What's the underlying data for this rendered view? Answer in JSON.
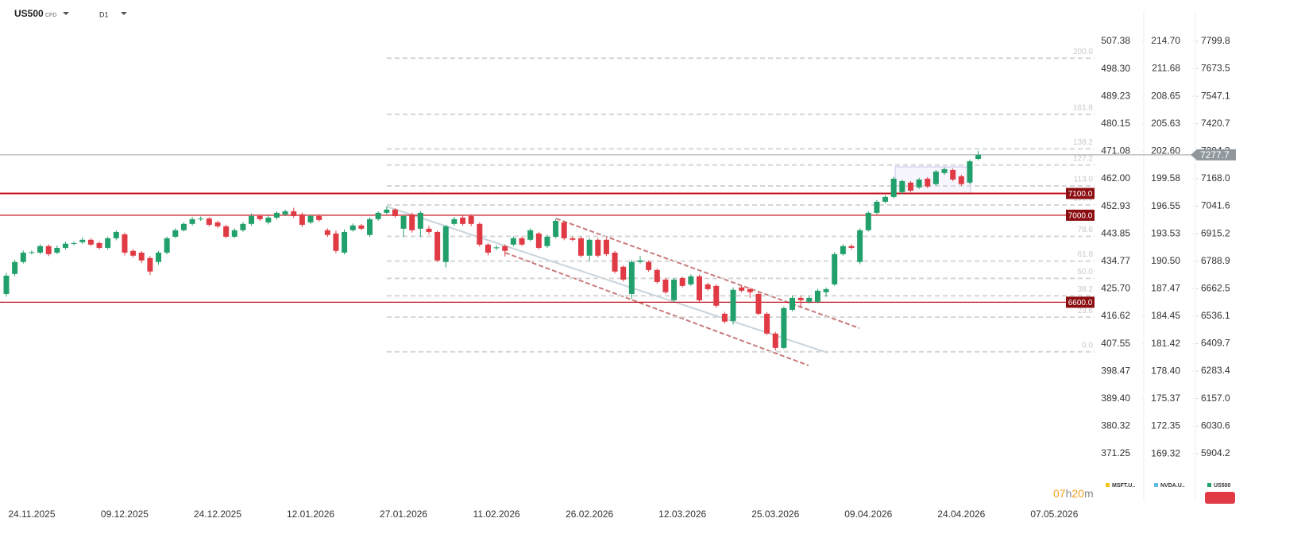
{
  "header": {
    "symbol": "US500",
    "instrument": "CFD",
    "timeframe": "D1"
  },
  "countdown": [
    "07",
    "h",
    "20",
    "m"
  ],
  "chart_data": {
    "type": "candlestick",
    "categories": [
      null,
      null,
      null,
      "24.11.2025",
      null,
      null,
      null,
      null,
      null,
      null,
      null,
      null,
      null,
      null,
      "09.12.2025",
      null,
      null,
      null,
      null,
      null,
      null,
      null,
      null,
      null,
      null,
      "24.12.2025",
      null,
      null,
      null,
      null,
      null,
      null,
      null,
      null,
      null,
      null,
      "12.01.2026",
      null,
      null,
      null,
      null,
      null,
      null,
      null,
      null,
      null,
      null,
      "27.01.2026",
      null,
      null,
      null,
      null,
      null,
      null,
      null,
      null,
      null,
      null,
      "11.02.2026",
      null,
      null,
      null,
      null,
      null,
      null,
      null,
      null,
      null,
      null,
      "26.02.2026",
      null,
      null,
      null,
      null,
      null,
      null,
      null,
      null,
      null,
      null,
      "12.03.2026",
      null,
      null,
      null,
      null,
      null,
      null,
      null,
      null,
      null,
      null,
      "25.03.2026",
      null,
      null,
      null,
      null,
      null,
      null,
      null,
      null,
      null,
      null,
      "09.04.2026",
      null,
      null,
      null,
      null,
      null,
      null,
      null,
      null,
      null,
      null,
      "24.04.2026",
      null,
      null,
      null,
      null,
      null,
      null,
      null,
      null,
      null,
      null,
      "07.05.2026",
      null,
      null,
      null,
      null
    ],
    "open": [
      6638,
      6730,
      6785,
      6828,
      6828,
      6858,
      6828,
      6850,
      6869,
      6876,
      6887,
      6872,
      6850,
      6894,
      6912,
      6836,
      6828,
      6803,
      6785,
      6828,
      6901,
      6931,
      6960,
      6982,
      6985,
      6967,
      6949,
      6901,
      6931,
      6960,
      6996,
      6967,
      6989,
      7004,
      7018,
      7004,
      6967,
      6996,
      6931,
      6916,
      6828,
      6931,
      6953,
      6909,
      6982,
      7011,
      7026,
      6938,
      7004,
      6938,
      6938,
      6923,
      6785,
      6960,
      6989,
      6996,
      6960,
      6865,
      6850,
      6858,
      6865,
      6894,
      6887,
      6916,
      6858,
      6901,
      6967,
      6894,
      6894,
      6814,
      6887,
      6887,
      6828,
      6763,
      6638,
      6785,
      6785,
      6748,
      6704,
      6609,
      6711,
      6682,
      6719,
      6682,
      6675,
      6547,
      6514,
      6668,
      6660,
      6638,
      6547,
      6456,
      6390,
      6565,
      6620,
      6602,
      6602,
      6646,
      6682,
      6821,
      6858,
      6785,
      6931,
      7011,
      7062,
      7084,
      7106,
      7150,
      7128,
      7168,
      7143,
      7194,
      7208,
      7179,
      7150,
      7259,
      null,
      null,
      null,
      null,
      null,
      null,
      null,
      null,
      null,
      null,
      null,
      null,
      null
    ],
    "high": [
      6735,
      6795,
      6838,
      6838,
      6866,
      6866,
      6860,
      6878,
      6880,
      6898,
      6895,
      6880,
      6902,
      6930,
      6920,
      6845,
      6836,
      6812,
      6836,
      6902,
      6940,
      6968,
      6992,
      6994,
      6992,
      6975,
      6956,
      6940,
      6968,
      7008,
      7004,
      6998,
      7018,
      7026,
      7034,
      7012,
      7004,
      7004,
      6940,
      6930,
      6935,
      6962,
      6960,
      6990,
      7018,
      7040,
      7032,
      7004,
      7012,
      7020,
      6950,
      6930,
      6956,
      6992,
      6998,
      7004,
      6968,
      6872,
      6862,
      6866,
      6902,
      6902,
      6940,
      6924,
      6910,
      6982,
      6974,
      6902,
      6902,
      6895,
      6895,
      6895,
      6836,
      6770,
      6795,
      6812,
      6792,
      6756,
      6712,
      6712,
      6718,
      6728,
      6726,
      6690,
      6682,
      6556,
      6668,
      6675,
      6668,
      6646,
      6555,
      6464,
      6580,
      6630,
      6628,
      6628,
      6662,
      6668,
      6830,
      6866,
      6866,
      6940,
      7018,
      7070,
      7092,
      7176,
      7164,
      7157,
      7172,
      7175,
      7208,
      7220,
      7215,
      7186,
      7256,
      7296,
      null,
      null,
      null,
      null,
      null,
      null,
      null,
      null,
      null,
      null,
      null,
      null,
      null
    ],
    "low": [
      6625,
      6720,
      6778,
      6820,
      6820,
      6812,
      6820,
      6842,
      6862,
      6868,
      6858,
      6842,
      6842,
      6885,
      6815,
      6805,
      6780,
      6725,
      6772,
      6820,
      6894,
      6925,
      6952,
      6974,
      6948,
      6940,
      6895,
      6894,
      6924,
      6952,
      6974,
      6958,
      6980,
      6996,
      6988,
      6945,
      6960,
      6970,
      6900,
      6825,
      6820,
      6925,
      6930,
      6900,
      6975,
      7004,
      6988,
      6900,
      6920,
      6900,
      6912,
      6785,
      6760,
      6952,
      6952,
      6950,
      6855,
      6815,
      6840,
      6810,
      6858,
      6858,
      6880,
      6842,
      6850,
      6894,
      6885,
      6880,
      6806,
      6790,
      6806,
      6812,
      6732,
      6695,
      6615,
      6778,
      6740,
      6685,
      6638,
      6602,
      6668,
      6675,
      6600,
      6652,
      6575,
      6502,
      6498,
      6645,
      6620,
      6540,
      6448,
      6378,
      6385,
      6558,
      6575,
      6595,
      6595,
      6625,
      6675,
      6814,
      6842,
      6775,
      6925,
      7004,
      7055,
      7078,
      7098,
      7106,
      7120,
      7124,
      7136,
      7186,
      7156,
      7136,
      7143,
      7252,
      null,
      null,
      null,
      null,
      null,
      null,
      null,
      null,
      null,
      null,
      null,
      null,
      null
    ],
    "close": [
      6722,
      6785,
      6828,
      6830,
      6858,
      6821,
      6850,
      6869,
      6872,
      6887,
      6865,
      6850,
      6894,
      6923,
      6828,
      6814,
      6792,
      6741,
      6828,
      6894,
      6931,
      6960,
      6982,
      6985,
      6956,
      6949,
      6901,
      6931,
      6960,
      6996,
      6982,
      6989,
      7011,
      7018,
      6996,
      6956,
      6996,
      6978,
      6909,
      6836,
      6923,
      6953,
      6938,
      6982,
      7011,
      7026,
      6996,
      6996,
      6931,
      7011,
      6923,
      6792,
      6949,
      6982,
      6960,
      6960,
      6865,
      6828,
      6852,
      6836,
      6894,
      6865,
      6931,
      6850,
      6901,
      6974,
      6894,
      6887,
      6814,
      6887,
      6814,
      6821,
      6741,
      6704,
      6785,
      6792,
      6748,
      6693,
      6646,
      6704,
      6675,
      6719,
      6609,
      6660,
      6584,
      6511,
      6657,
      6653,
      6646,
      6547,
      6456,
      6390,
      6573,
      6620,
      6609,
      6620,
      6653,
      6660,
      6821,
      6858,
      6850,
      6931,
      7011,
      7062,
      7084,
      7168,
      7157,
      7113,
      7164,
      7132,
      7201,
      7212,
      7164,
      7143,
      7248,
      7277.7,
      null,
      null,
      null,
      null,
      null,
      null,
      null,
      null,
      null,
      null,
      null,
      null,
      null
    ],
    "up_color": "#22a06b",
    "down_color": "#e03a45",
    "current_price": 7277.7,
    "levels": [
      {
        "value": 7100,
        "label": "7100.0"
      },
      {
        "value": 7000,
        "label": "7000.0"
      },
      {
        "value": 6600,
        "label": "6600.0"
      }
    ],
    "level_color": "#c4121c",
    "fib_range": [
      6372,
      7047
    ],
    "fib_levels": [
      {
        "value": 200,
        "label": "200.0"
      },
      161.8,
      138.2,
      127.2,
      {
        "value": 113,
        "label": "113.0"
      },
      {
        "value": 100,
        "label": "100.0"
      },
      78.6,
      61.8,
      {
        "value": 50,
        "label": "50.0"
      },
      38.2,
      23.6,
      {
        "value": 0,
        "label": "0.0"
      }
    ],
    "ylim": [
      5688,
      7880
    ],
    "yticks": [
      7799.8,
      7673.5,
      7547.1,
      7420.7,
      7294.3,
      {
        "value": 7168,
        "label": "7168.0"
      },
      7041.6,
      6915.2,
      6788.9,
      6662.5,
      6536.1,
      6409.7,
      6283.4,
      {
        "value": 6157,
        "label": "6157.0"
      },
      6030.6,
      5904.2
    ],
    "extra_axes": [
      {
        "lim": [
          355.77,
          513.15
        ],
        "ticks": [
          507.38,
          {
            "value": 498.3,
            "label": "498.30"
          },
          489.23,
          480.15,
          471.08,
          {
            "value": 462,
            "label": "462.00"
          },
          452.93,
          443.85,
          434.77,
          {
            "value": 425.7,
            "label": "425.70"
          },
          416.62,
          407.55,
          398.47,
          {
            "value": 389.4,
            "label": "389.40"
          },
          380.32,
          371.25
        ]
      },
      {
        "lim": [
          164.17,
          216.62
        ],
        "ticks": [
          {
            "value": 214.7,
            "label": "214.70"
          },
          211.68,
          208.65,
          205.63,
          {
            "value": 202.6,
            "label": "202.60"
          },
          199.58,
          196.55,
          193.53,
          {
            "value": 190.5,
            "label": "190.50"
          },
          187.47,
          184.45,
          181.42,
          {
            "value": 178.4,
            "label": "178.40"
          },
          175.37,
          172.35,
          169.32
        ]
      }
    ],
    "legend": [
      {
        "name": "MSFT.U..",
        "color": "#f2c318"
      },
      {
        "name": "NVDA.U..",
        "color": "#5bbde8"
      },
      {
        "name": "US500",
        "color": "#22a06b"
      }
    ]
  }
}
